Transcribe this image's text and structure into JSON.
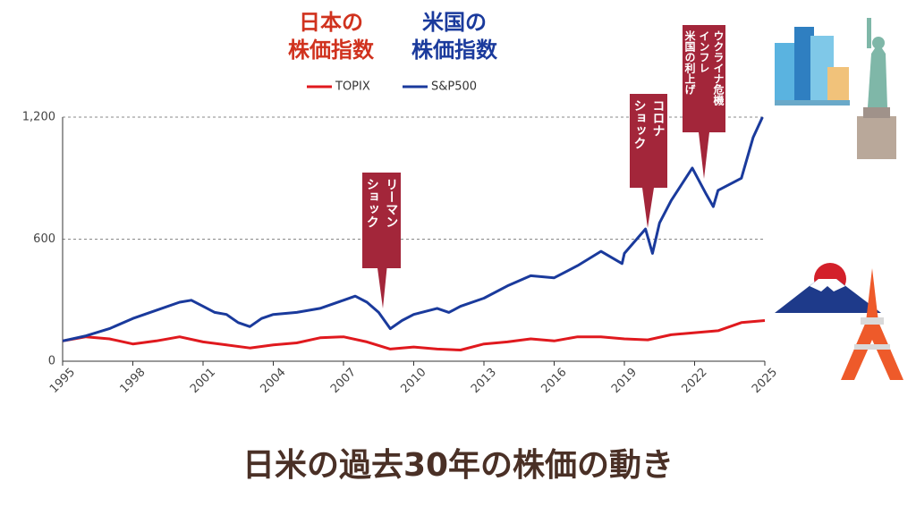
{
  "chart_data": {
    "type": "line",
    "headers": [
      {
        "text": "日本の\n株価指数",
        "color": "#d0321e"
      },
      {
        "text": "米国の\n株価指数",
        "color": "#1a3a9c"
      }
    ],
    "title": "日米の過去30年の株価の動き",
    "xlim": [
      1995,
      2025
    ],
    "xticks": [
      1995,
      1998,
      2001,
      2004,
      2007,
      2010,
      2013,
      2016,
      2019,
      2022,
      2025
    ],
    "ylim": [
      0,
      1200
    ],
    "yticks": [
      0,
      600,
      {
        "value": 1200,
        "label": "1,200"
      }
    ],
    "grid": true,
    "series": [
      {
        "name": "TOPIX",
        "color": "#e0191e",
        "x": [
          1995,
          1996,
          1997,
          1998,
          1999,
          2000,
          2001,
          2002,
          2003,
          2004,
          2005,
          2006,
          2007,
          2008,
          2009,
          2010,
          2011,
          2012,
          2013,
          2014,
          2015,
          2016,
          2017,
          2018,
          2019,
          2020,
          2021,
          2022,
          2023,
          2024,
          2025
        ],
        "values": [
          100,
          120,
          110,
          85,
          100,
          120,
          95,
          80,
          65,
          80,
          90,
          115,
          120,
          95,
          60,
          70,
          60,
          55,
          85,
          95,
          110,
          100,
          120,
          120,
          110,
          105,
          130,
          140,
          150,
          190,
          200
        ]
      },
      {
        "name": "S&P500",
        "color": "#1a3a9c",
        "x": [
          1995,
          1996,
          1997,
          1998,
          1999,
          2000,
          2000.5,
          2001,
          2001.5,
          2002,
          2002.5,
          2003,
          2003.5,
          2004,
          2005,
          2006,
          2007,
          2007.5,
          2008,
          2008.5,
          2009,
          2009.5,
          2010,
          2011,
          2011.5,
          2012,
          2013,
          2014,
          2015,
          2016,
          2017,
          2018,
          2018.9,
          2019,
          2019.9,
          2020.2,
          2020.5,
          2021,
          2021.9,
          2022.5,
          2022.8,
          2023,
          2024,
          2024.5,
          2024.9
        ],
        "values": [
          100,
          125,
          160,
          210,
          250,
          290,
          300,
          270,
          240,
          230,
          190,
          170,
          210,
          230,
          240,
          260,
          300,
          320,
          290,
          240,
          160,
          200,
          230,
          260,
          240,
          270,
          310,
          370,
          420,
          410,
          470,
          540,
          480,
          530,
          650,
          530,
          680,
          790,
          950,
          820,
          760,
          840,
          900,
          1100,
          1200
        ]
      }
    ],
    "annotations": [
      {
        "lines": [
          "リーマン",
          "ショック"
        ]
      },
      {
        "lines": [
          "コロナ",
          "ショック"
        ]
      },
      {
        "lines": [
          "ウクライナ危機",
          "インフレ",
          "米国の利上げ"
        ]
      }
    ]
  }
}
